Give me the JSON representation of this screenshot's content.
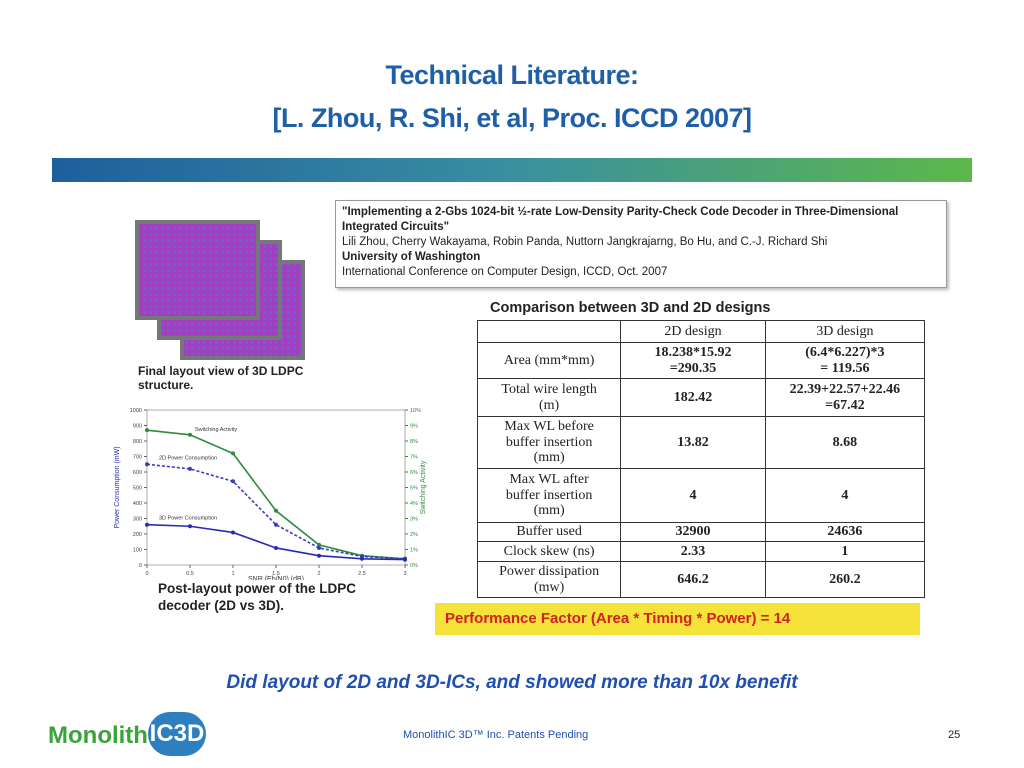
{
  "title": [
    "Technical Literature:",
    "[L. Zhou, R. Shi, et al, Proc. ICCD 2007]"
  ],
  "paper": {
    "title": "\"Implementing a 2-Gbs 1024-bit ½-rate Low-Density Parity-Check Code Decoder in Three-Dimensional Integrated Circuits\"",
    "authors": "Lili Zhou, Cherry Wakayama, Robin Panda, Nuttorn Jangkrajarng, Bo Hu, and C.-J. Richard Shi",
    "affiliation": "University of Washington",
    "venue": "International Conference on Computer Design, ICCD, Oct. 2007"
  },
  "layout_caption": "Final layout view of 3D LDPC structure.",
  "chart_data": {
    "type": "line",
    "x": [
      0,
      0.5,
      1,
      1.5,
      2,
      2.5,
      3
    ],
    "xlabel": "SNR (Eb/N0) (dB)",
    "ylabel": "Power Consumption (mW)",
    "y2label": "Switching Activity",
    "xlim": [
      0,
      3
    ],
    "ylim": [
      0,
      1000
    ],
    "y2lim": [
      0,
      10
    ],
    "xticks": [
      0,
      0.5,
      1,
      1.5,
      2,
      2.5,
      3
    ],
    "yticks": [
      0,
      100,
      200,
      300,
      400,
      500,
      600,
      700,
      800,
      900,
      1000
    ],
    "y2ticks": [
      {
        "value": 0,
        "label": "0%"
      },
      {
        "value": 1,
        "label": "1%"
      },
      {
        "value": 2,
        "label": "2%"
      },
      {
        "value": 3,
        "label": "3%"
      },
      {
        "value": 4,
        "label": "4%"
      },
      {
        "value": 5,
        "label": "5%"
      },
      {
        "value": 6,
        "label": "6%"
      },
      {
        "value": 7,
        "label": "7%"
      },
      {
        "value": 8,
        "label": "8%"
      },
      {
        "value": 9,
        "label": "9%"
      },
      {
        "value": 10,
        "label": "10%"
      }
    ],
    "series": [
      {
        "name": "Switching Activity",
        "color": "#2e8b3a",
        "axis": "y2",
        "dashed": false,
        "values": [
          8.7,
          8.4,
          7.2,
          3.5,
          1.3,
          0.6,
          0.4
        ]
      },
      {
        "name": "2D Power Consumption",
        "color": "#3b3bbf",
        "dashed": true,
        "values": [
          650,
          620,
          540,
          260,
          110,
          55,
          40
        ]
      },
      {
        "name": "3D Power Consumption",
        "color": "#2a2ab0",
        "dashed": false,
        "values": [
          260,
          250,
          210,
          110,
          60,
          40,
          35
        ]
      }
    ],
    "caption": "Post-layout power of the LDPC decoder (2D vs 3D)."
  },
  "table": {
    "title": "Comparison between 3D and 2D designs",
    "header": [
      "",
      "2D design",
      "3D design"
    ],
    "rows": [
      [
        "Area (mm*mm)",
        "18.238*15.92\n=290.35",
        "(6.4*6.227)*3\n= 119.56"
      ],
      [
        "Total wire length\n(m)",
        "182.42",
        "22.39+22.57+22.46\n=67.42"
      ],
      [
        "Max WL before\nbuffer insertion\n(mm)",
        "13.82",
        "8.68"
      ],
      [
        "Max WL after\nbuffer insertion\n(mm)",
        "4",
        "4"
      ],
      [
        "Buffer used",
        "32900",
        "24636"
      ],
      [
        "Clock skew (ns)",
        "2.33",
        "1"
      ],
      [
        "Power dissipation\n(mw)",
        "646.2",
        "260.2"
      ]
    ]
  },
  "performance": "Performance Factor (Area * Timing * Power)  =  14",
  "conclusion": "Did layout of 2D and 3D-ICs, and showed more than 10x benefit",
  "logo": [
    "Monolith",
    "IC3D"
  ],
  "footer": "MonolithIC 3D™ Inc. Patents Pending",
  "page_number": "25"
}
